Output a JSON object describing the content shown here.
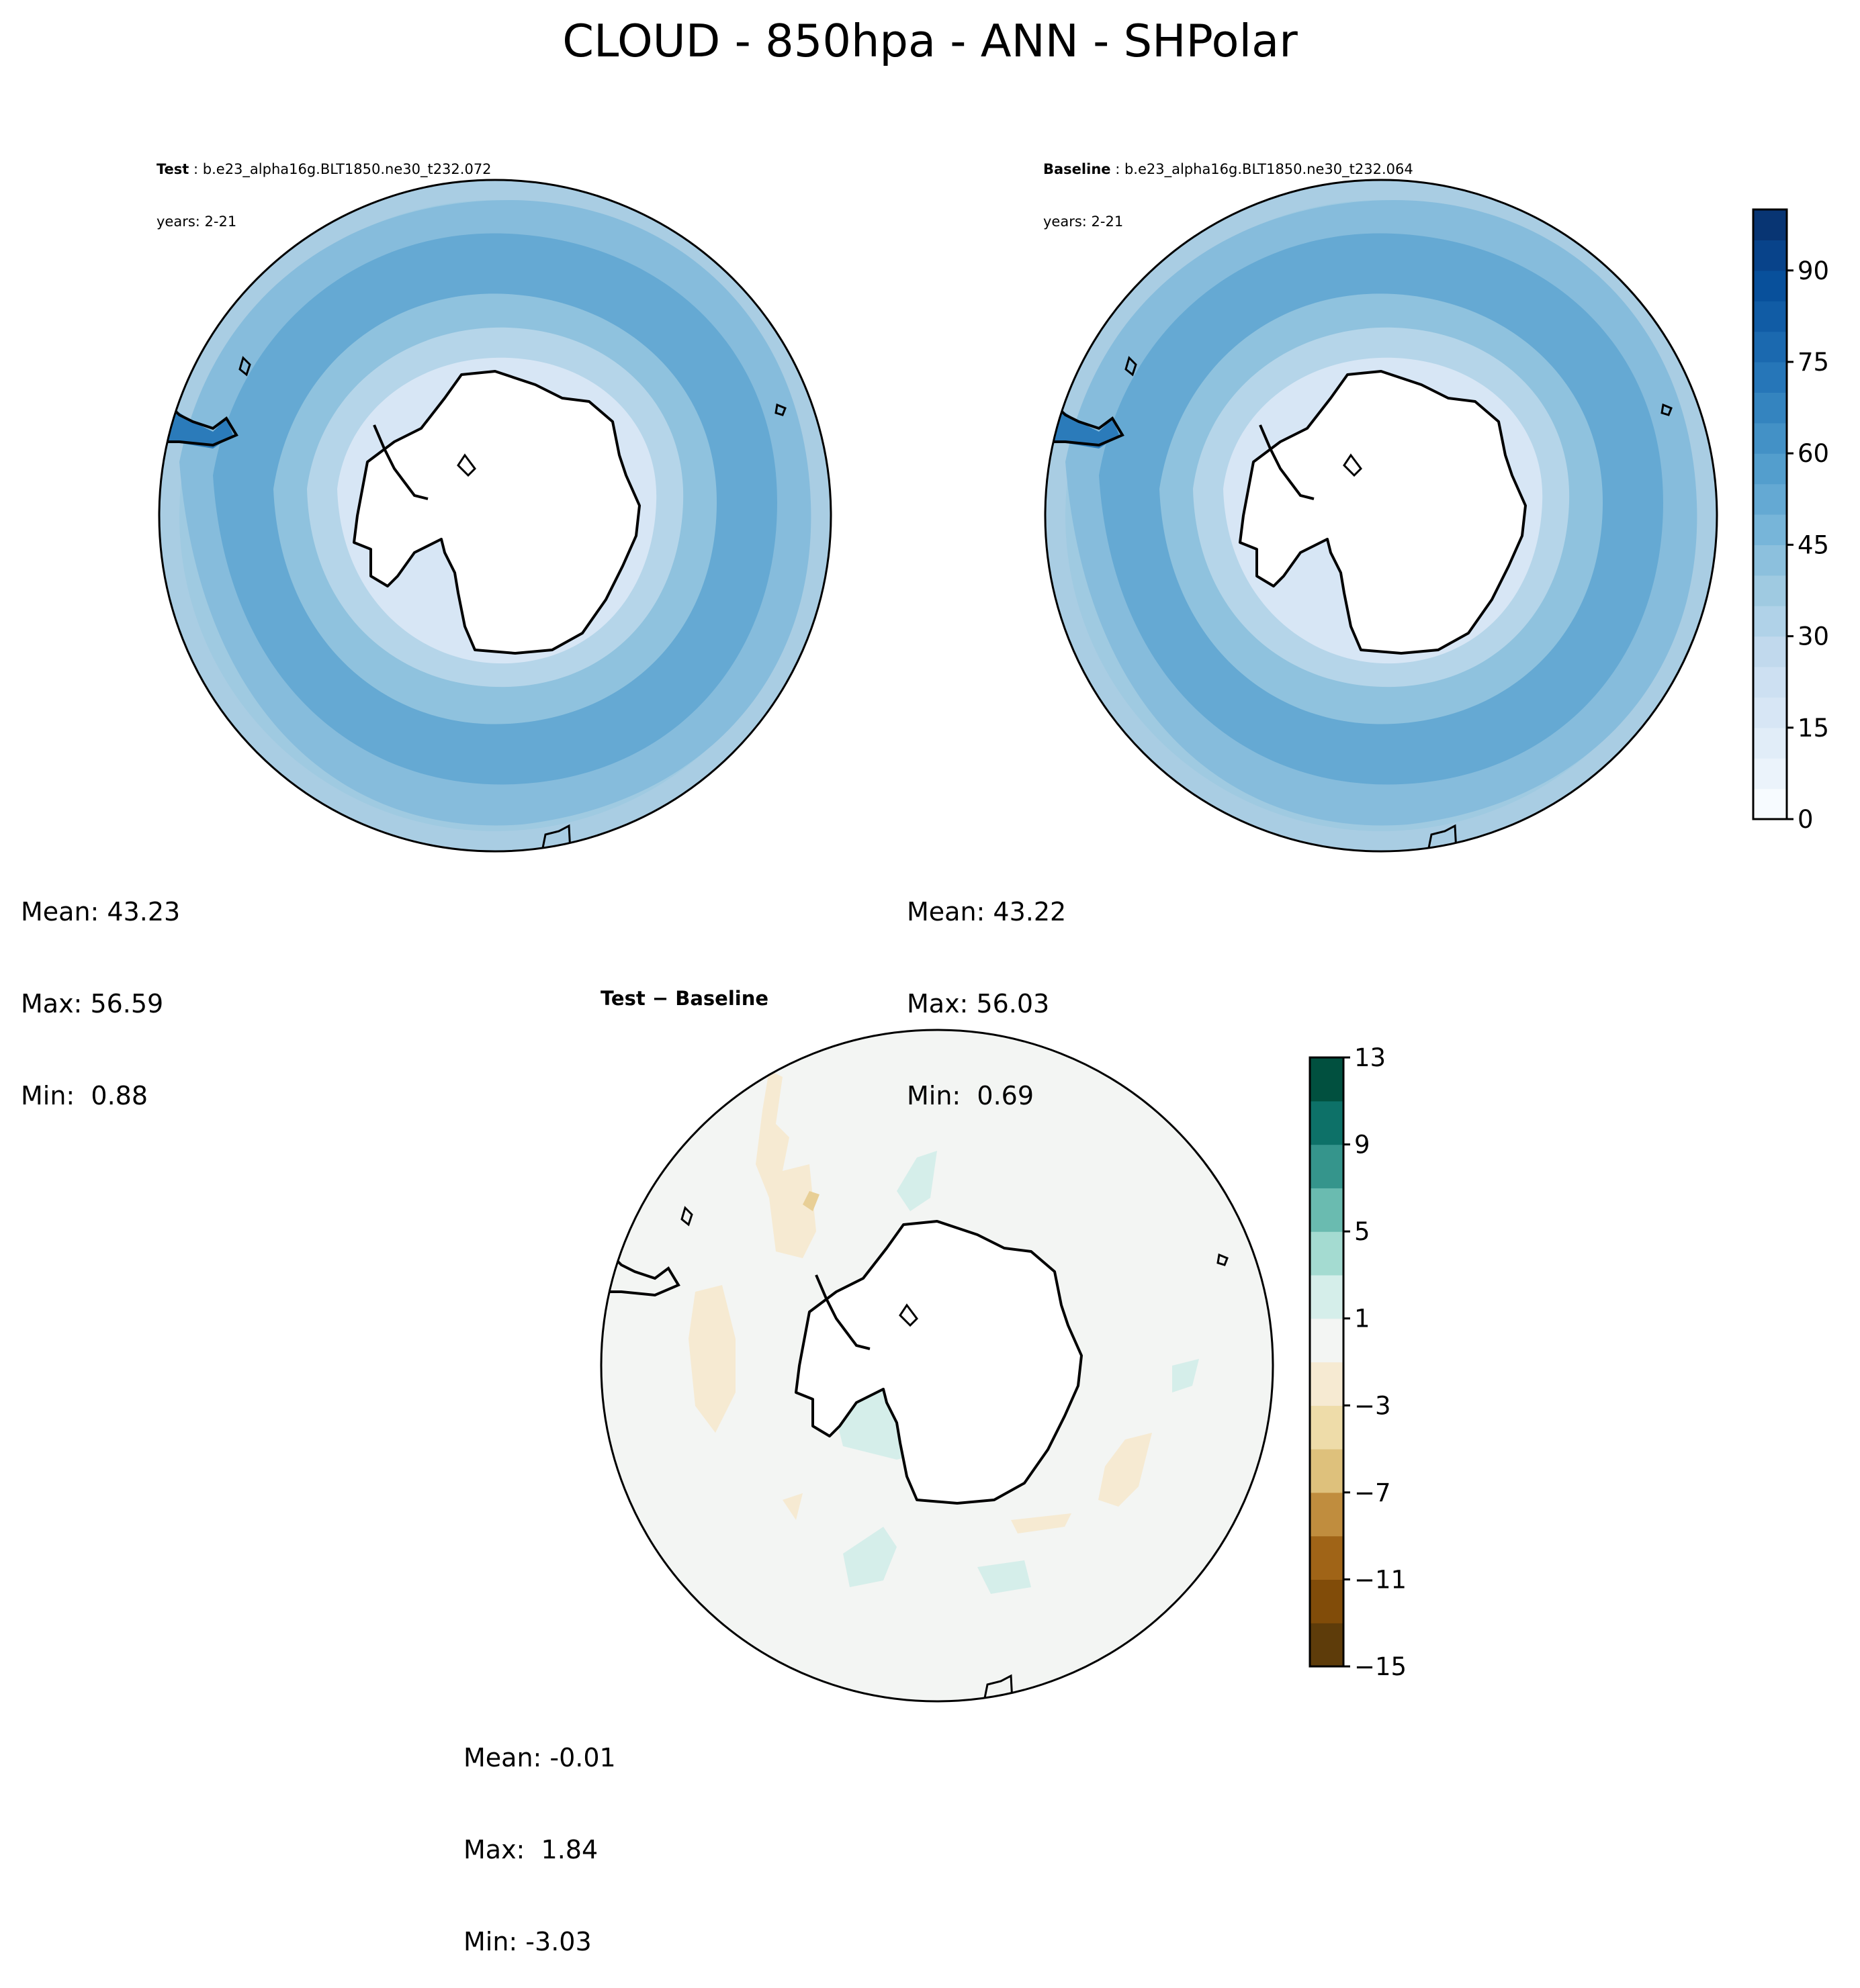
{
  "figure": {
    "title": "CLOUD - 850hpa - ANN - SHPolar"
  },
  "chart_data": [
    {
      "type": "heatmap",
      "projection": "south-polar-stereographic",
      "panel": "test",
      "title_label": "Test",
      "title_case": "b.e23_alpha16g.BLT1850.ne30_t232.072",
      "years": "years: 2-21",
      "stats": {
        "mean": "Mean: 43.23",
        "max": "Max: 56.59",
        "min": "Min:  0.88"
      },
      "colormap": "Blues",
      "field_summary": {
        "antarctic_interior": "no data (white)",
        "coastal_ring": "15-30",
        "storm_track_belt": "50-60",
        "outer_ring": "35-50"
      }
    },
    {
      "type": "heatmap",
      "projection": "south-polar-stereographic",
      "panel": "baseline",
      "title_label": "Baseline",
      "title_case": "b.e23_alpha16g.BLT1850.ne30_t232.064",
      "years": "years: 2-21",
      "stats": {
        "mean": "Mean: 43.22",
        "max": "Max: 56.03",
        "min": "Min:  0.69"
      },
      "colormap": "Blues",
      "colorbar": {
        "ticks": [
          "0",
          "15",
          "30",
          "45",
          "60",
          "75",
          "90"
        ],
        "range": [
          0,
          100
        ],
        "levels": 20,
        "colors": [
          "#f7fbff",
          "#ebf3fb",
          "#e1edf8",
          "#d7e6f5",
          "#cde0f2",
          "#c1d9ed",
          "#b0d2e8",
          "#9fcae1",
          "#8cc0dd",
          "#77b5d9",
          "#64a9d3",
          "#539ecd",
          "#4391c6",
          "#3484bf",
          "#2676b8",
          "#1b69af",
          "#115ca5",
          "#08509b",
          "#08438a",
          "#083573"
        ]
      }
    },
    {
      "type": "heatmap",
      "projection": "south-polar-stereographic",
      "panel": "difference",
      "title": "Test − Baseline",
      "stats": {
        "mean": "Mean: -0.01",
        "max": "Max:  1.84",
        "min": "Min: -3.03"
      },
      "colormap": "BrBG",
      "colorbar": {
        "ticks": [
          "13",
          "9",
          "5",
          "1",
          "−3",
          "−7",
          "−11",
          "−15"
        ],
        "range": [
          -15,
          13
        ],
        "levels": 14,
        "colors": [
          "#5e3c0a",
          "#814c09",
          "#a06417",
          "#c08d3e",
          "#dec17c",
          "#eedca9",
          "#f6ead2",
          "#f3f5f3",
          "#d5eeea",
          "#a4dbd1",
          "#6abbb0",
          "#35958c",
          "#0d7168",
          "#01503f"
        ]
      }
    }
  ]
}
